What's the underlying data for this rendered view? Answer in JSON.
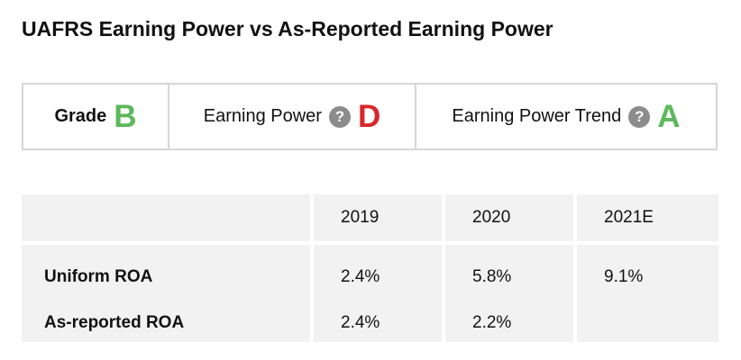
{
  "title": "UAFRS Earning Power vs As-Reported Earning Power",
  "grades": [
    {
      "label": "Grade",
      "letter": "B",
      "color": "#5cb85c",
      "has_help": false
    },
    {
      "label": "Earning Power",
      "letter": "D",
      "color": "#d9262c",
      "has_help": true
    },
    {
      "label": "Earning Power Trend",
      "letter": "A",
      "color": "#5cb85c",
      "has_help": true
    }
  ],
  "help_icon": {
    "glyph": "?",
    "icon": "question-circle-icon",
    "color": "#8c8c8c"
  },
  "table": {
    "columns": [
      "",
      "2019",
      "2020",
      "2021E"
    ],
    "rows": [
      {
        "label": "Uniform ROA",
        "values": [
          "2.4%",
          "5.8%",
          "9.1%"
        ]
      },
      {
        "label": "As-reported ROA",
        "values": [
          "2.4%",
          "2.2%",
          ""
        ]
      }
    ]
  }
}
